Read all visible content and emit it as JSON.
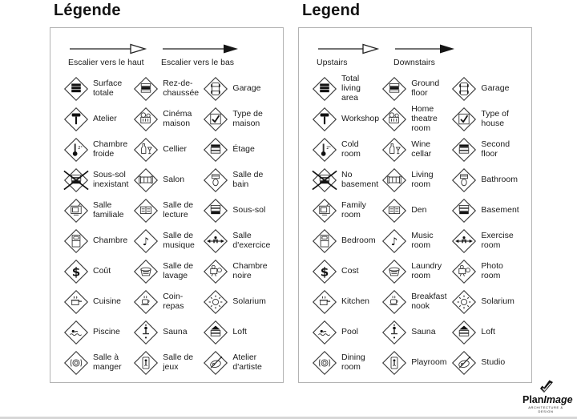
{
  "panels": [
    {
      "id": "fr",
      "title": "Légende",
      "arrows": [
        {
          "style": "open",
          "label": "Escalier vers le haut"
        },
        {
          "style": "filled",
          "label": "Escalier vers le bas"
        }
      ],
      "items": [
        {
          "name": "surface-totale",
          "icon": "stacked-floors-all",
          "label": "Surface\ntotale"
        },
        {
          "name": "rez-de-chaussee",
          "icon": "stacked-floors-middle",
          "label": "Rez-de-\nchaussée"
        },
        {
          "name": "garage",
          "icon": "car",
          "label": "Garage"
        },
        {
          "name": "atelier",
          "icon": "hammer",
          "label": "Atelier"
        },
        {
          "name": "cinema-maison",
          "icon": "film-projector",
          "label": "Cinéma\nmaison"
        },
        {
          "name": "type-de-maison",
          "icon": "checked-box",
          "label": "Type de\nmaison"
        },
        {
          "name": "chambre-froide",
          "icon": "thermometer",
          "label": "Chambre\nfroide"
        },
        {
          "name": "cellier",
          "icon": "wine-bottle-glass",
          "label": "Cellier"
        },
        {
          "name": "etage",
          "icon": "stacked-floors-top",
          "label": "Étage"
        },
        {
          "name": "sous-sol-inexistant",
          "icon": "crossed-basement",
          "label": "Sous-sol\ninexistant"
        },
        {
          "name": "salon",
          "icon": "sofa",
          "label": "Salon"
        },
        {
          "name": "salle-de-bain",
          "icon": "toilet",
          "label": "Salle de\nbain"
        },
        {
          "name": "salle-familiale",
          "icon": "television",
          "label": "Salle\nfamiliale"
        },
        {
          "name": "salle-de-lecture",
          "icon": "bookshelf",
          "label": "Salle de\nlecture"
        },
        {
          "name": "sous-sol",
          "icon": "stacked-floors-bottom",
          "label": "Sous-sol"
        },
        {
          "name": "chambre",
          "icon": "bed",
          "label": "Chambre"
        },
        {
          "name": "salle-de-musique",
          "icon": "music-note",
          "label": "Salle de\nmusique"
        },
        {
          "name": "salle-d-exercice",
          "icon": "exercise-machine",
          "label": "Salle\nd'exercice"
        },
        {
          "name": "cout",
          "icon": "dollar-sign",
          "label": "Coût"
        },
        {
          "name": "salle-de-lavage",
          "icon": "laundry-basket",
          "label": "Salle de\nlavage"
        },
        {
          "name": "chambre-noire",
          "icon": "photo-camera",
          "label": "Chambre\nnoire"
        },
        {
          "name": "cuisine",
          "icon": "cooking-pot",
          "label": "Cuisine"
        },
        {
          "name": "coin-repas",
          "icon": "coffee-cup",
          "label": "Coin-\nrepas"
        },
        {
          "name": "solarium",
          "icon": "sun",
          "label": "Solarium"
        },
        {
          "name": "piscine",
          "icon": "swimmer",
          "label": "Piscine"
        },
        {
          "name": "sauna",
          "icon": "sauna-person",
          "label": "Sauna"
        },
        {
          "name": "loft",
          "icon": "stacked-floors-roof",
          "label": "Loft"
        },
        {
          "name": "salle-a-manger",
          "icon": "plate-cutlery",
          "label": "Salle à\nmanger"
        },
        {
          "name": "salle-de-jeux",
          "icon": "toy-figure",
          "label": "Salle de\njeux"
        },
        {
          "name": "atelier-d-artiste",
          "icon": "artist-palette",
          "label": "Atelier\nd'artiste"
        }
      ]
    },
    {
      "id": "en",
      "title": "Legend",
      "arrows": [
        {
          "style": "open",
          "label": "Upstairs"
        },
        {
          "style": "filled",
          "label": "Downstairs"
        }
      ],
      "items": [
        {
          "name": "total-living-area",
          "icon": "stacked-floors-all",
          "label": "Total\nliving\narea"
        },
        {
          "name": "ground-floor",
          "icon": "stacked-floors-middle",
          "label": "Ground\nfloor"
        },
        {
          "name": "garage",
          "icon": "car",
          "label": "Garage"
        },
        {
          "name": "workshop",
          "icon": "hammer",
          "label": "Workshop"
        },
        {
          "name": "home-theatre-room",
          "icon": "film-projector",
          "label": "Home\ntheatre\nroom"
        },
        {
          "name": "type-of-house",
          "icon": "checked-box",
          "label": "Type of\nhouse"
        },
        {
          "name": "cold-room",
          "icon": "thermometer",
          "label": "Cold\nroom"
        },
        {
          "name": "wine-cellar",
          "icon": "wine-bottle-glass",
          "label": "Wine\ncellar"
        },
        {
          "name": "second-floor",
          "icon": "stacked-floors-top",
          "label": "Second\nfloor"
        },
        {
          "name": "no-basement",
          "icon": "crossed-basement",
          "label": "No\nbasement"
        },
        {
          "name": "living-room",
          "icon": "sofa",
          "label": "Living\nroom"
        },
        {
          "name": "bathroom",
          "icon": "toilet",
          "label": "Bathroom"
        },
        {
          "name": "family-room",
          "icon": "television",
          "label": "Family\nroom"
        },
        {
          "name": "den",
          "icon": "bookshelf",
          "label": "Den"
        },
        {
          "name": "basement",
          "icon": "stacked-floors-bottom",
          "label": "Basement"
        },
        {
          "name": "bedroom",
          "icon": "bed",
          "label": "Bedroom"
        },
        {
          "name": "music-room",
          "icon": "music-note",
          "label": "Music\nroom"
        },
        {
          "name": "exercise-room",
          "icon": "exercise-machine",
          "label": "Exercise\nroom"
        },
        {
          "name": "cost",
          "icon": "dollar-sign",
          "label": "Cost"
        },
        {
          "name": "laundry-room",
          "icon": "laundry-basket",
          "label": "Laundry\nroom"
        },
        {
          "name": "photo-room",
          "icon": "photo-camera",
          "label": "Photo\nroom"
        },
        {
          "name": "kitchen",
          "icon": "cooking-pot",
          "label": "Kitchen"
        },
        {
          "name": "breakfast-nook",
          "icon": "coffee-cup",
          "label": "Breakfast\nnook"
        },
        {
          "name": "solarium",
          "icon": "sun",
          "label": "Solarium"
        },
        {
          "name": "pool",
          "icon": "swimmer",
          "label": "Pool"
        },
        {
          "name": "sauna",
          "icon": "sauna-person",
          "label": "Sauna"
        },
        {
          "name": "loft",
          "icon": "stacked-floors-roof",
          "label": "Loft"
        },
        {
          "name": "dining-room",
          "icon": "plate-cutlery",
          "label": "Dining\nroom"
        },
        {
          "name": "playroom",
          "icon": "toy-figure",
          "label": "Playroom"
        },
        {
          "name": "studio",
          "icon": "artist-palette",
          "label": "Studio"
        }
      ]
    }
  ],
  "logo": {
    "name_bold": "Plan",
    "name_italic": "Image",
    "tagline": "ARCHITECTURE & DESIGN"
  },
  "colors": {
    "icon_stroke": "#333333",
    "icon_fill": "#111111",
    "box_border": "#b3b3b3",
    "text": "#1b1b1b"
  }
}
